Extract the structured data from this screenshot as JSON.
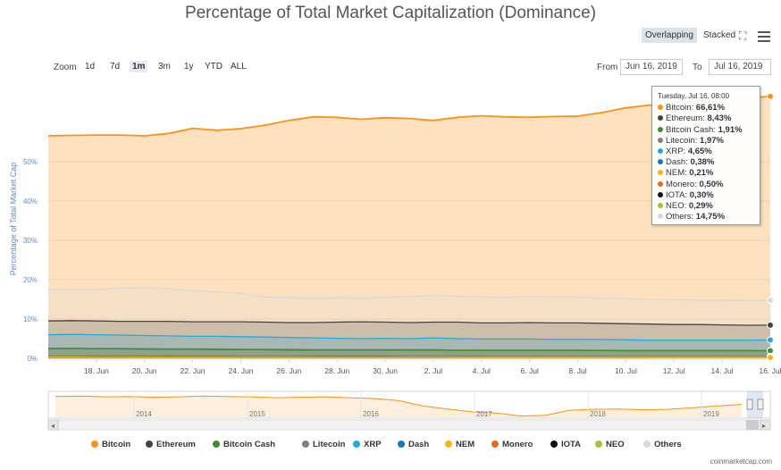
{
  "title": "Percentage of Total Market Capitalization (Dominance)",
  "view_buttons": {
    "overlapping": "Overlapping",
    "stacked": "Stacked"
  },
  "icons": {
    "fullscreen": "fullscreen-icon",
    "menu": "menu-icon"
  },
  "zoom": {
    "label": "Zoom",
    "options": [
      "1d",
      "7d",
      "1m",
      "3m",
      "1y",
      "YTD",
      "ALL"
    ],
    "active": "1m"
  },
  "range": {
    "from_label": "From",
    "from_value": "Jun 16, 2019",
    "to_label": "To",
    "to_value": "Jul 16, 2019"
  },
  "tooltip": {
    "header": "Tuesday, Jul 16, 08:00",
    "rows": [
      {
        "name": "Bitcoin",
        "value": "66,61%",
        "color": "#f7931a"
      },
      {
        "name": "Ethereum",
        "value": "8,43%",
        "color": "#434348"
      },
      {
        "name": "Bitcoin Cash",
        "value": "1,91%",
        "color": "#3c8d2f"
      },
      {
        "name": "Litecoin",
        "value": "1,97%",
        "color": "#7f7f7f"
      },
      {
        "name": "XRP",
        "value": "4,65%",
        "color": "#29a8d8"
      },
      {
        "name": "Dash",
        "value": "0,38%",
        "color": "#1c75bc"
      },
      {
        "name": "NEM",
        "value": "0,21%",
        "color": "#f8b41b"
      },
      {
        "name": "Monero",
        "value": "0,50%",
        "color": "#e46d1c"
      },
      {
        "name": "IOTA",
        "value": "0,30%",
        "color": "#111111"
      },
      {
        "name": "NEO",
        "value": "0,29%",
        "color": "#9ec43a"
      },
      {
        "name": "Others",
        "value": "14,75%",
        "color": "#d9d9d9"
      }
    ]
  },
  "navigator": {
    "year_labels": [
      "2014",
      "2015",
      "2016",
      "2017",
      "2018",
      "2019"
    ]
  },
  "credit": "coinmarketcap.com",
  "chart_data": {
    "type": "area",
    "ylabel": "Percentage of Total Market Cap",
    "xlabel": "",
    "ylim": [
      0,
      70
    ],
    "y_ticks": [
      "0%",
      "10%",
      "20%",
      "30%",
      "40%",
      "50%"
    ],
    "x_ticks": [
      "18. Jun",
      "20. Jun",
      "22. Jun",
      "24. Jun",
      "26. Jun",
      "28. Jun",
      "30. Jun",
      "2. Jul",
      "4. Jul",
      "6. Jul",
      "8. Jul",
      "10. Jul",
      "12. Jul",
      "14. Jul",
      "16. Jul"
    ],
    "x": [
      "Jun 16",
      "Jun 17",
      "Jun 18",
      "Jun 19",
      "Jun 20",
      "Jun 21",
      "Jun 22",
      "Jun 23",
      "Jun 24",
      "Jun 25",
      "Jun 26",
      "Jun 27",
      "Jun 28",
      "Jun 29",
      "Jun 30",
      "Jul 1",
      "Jul 2",
      "Jul 3",
      "Jul 4",
      "Jul 5",
      "Jul 6",
      "Jul 7",
      "Jul 8",
      "Jul 9",
      "Jul 10",
      "Jul 11",
      "Jul 12",
      "Jul 13",
      "Jul 14",
      "Jul 15",
      "Jul 16"
    ],
    "grid": true,
    "legend_position": "bottom",
    "series": [
      {
        "name": "Bitcoin",
        "color": "#f7931a",
        "values": [
          56.6,
          56.7,
          56.8,
          56.8,
          56.6,
          57.2,
          58.5,
          58.0,
          58.4,
          59.3,
          60.5,
          61.4,
          61.3,
          60.8,
          61.2,
          61.0,
          60.5,
          61.3,
          61.7,
          61.4,
          61.3,
          61.5,
          61.6,
          62.5,
          63.7,
          64.4,
          65.0,
          65.3,
          65.8,
          66.2,
          66.61
        ]
      },
      {
        "name": "Others",
        "color": "#d9d9d9",
        "values": [
          17.6,
          17.5,
          17.5,
          17.8,
          18.0,
          17.7,
          17.2,
          16.9,
          16.6,
          15.6,
          15.4,
          15.3,
          15.4,
          15.3,
          15.5,
          15.7,
          16.0,
          15.8,
          15.6,
          15.5,
          15.7,
          15.6,
          15.6,
          15.3,
          15.2,
          15.0,
          14.9,
          14.8,
          14.8,
          14.7,
          14.75
        ]
      },
      {
        "name": "Ethereum",
        "color": "#434348",
        "values": [
          9.5,
          9.6,
          9.5,
          9.4,
          9.4,
          9.4,
          9.3,
          9.3,
          9.3,
          9.2,
          9.1,
          9.1,
          9.2,
          9.3,
          9.2,
          9.1,
          9.2,
          9.2,
          9.0,
          9.0,
          9.1,
          9.0,
          9.0,
          8.9,
          8.8,
          8.7,
          8.6,
          8.6,
          8.5,
          8.4,
          8.43
        ]
      },
      {
        "name": "XRP",
        "color": "#29a8d8",
        "values": [
          6.0,
          6.1,
          6.0,
          5.9,
          5.8,
          5.7,
          5.6,
          5.6,
          5.5,
          5.4,
          5.3,
          5.2,
          5.1,
          5.0,
          5.1,
          5.0,
          5.2,
          5.0,
          4.9,
          4.9,
          4.9,
          4.8,
          4.8,
          4.8,
          4.7,
          4.6,
          4.6,
          4.6,
          4.6,
          4.6,
          4.65
        ]
      },
      {
        "name": "Litecoin",
        "color": "#7f7f7f",
        "values": [
          2.6,
          2.6,
          2.5,
          2.5,
          2.5,
          2.4,
          2.4,
          2.4,
          2.3,
          2.3,
          2.3,
          2.2,
          2.2,
          2.2,
          2.2,
          2.2,
          2.2,
          2.1,
          2.1,
          2.1,
          2.1,
          2.1,
          2.1,
          2.0,
          2.0,
          2.0,
          2.0,
          2.0,
          2.0,
          2.0,
          1.97
        ]
      },
      {
        "name": "Bitcoin Cash",
        "color": "#3c8d2f",
        "values": [
          2.4,
          2.5,
          2.4,
          2.4,
          2.3,
          2.3,
          2.3,
          2.2,
          2.2,
          2.2,
          2.1,
          2.1,
          2.1,
          2.1,
          2.1,
          2.1,
          2.1,
          2.0,
          2.0,
          2.0,
          2.0,
          2.0,
          2.0,
          2.0,
          1.9,
          1.9,
          1.9,
          1.9,
          1.9,
          1.9,
          1.91
        ]
      },
      {
        "name": "Monero",
        "color": "#e46d1c",
        "values": [
          0.6,
          0.6,
          0.6,
          0.6,
          0.6,
          0.6,
          0.6,
          0.6,
          0.55,
          0.55,
          0.55,
          0.55,
          0.55,
          0.55,
          0.55,
          0.55,
          0.55,
          0.52,
          0.52,
          0.52,
          0.52,
          0.52,
          0.52,
          0.5,
          0.5,
          0.5,
          0.5,
          0.5,
          0.5,
          0.5,
          0.5
        ]
      },
      {
        "name": "Dash",
        "color": "#1c75bc",
        "values": [
          0.45,
          0.45,
          0.45,
          0.44,
          0.44,
          0.43,
          0.43,
          0.42,
          0.42,
          0.41,
          0.41,
          0.41,
          0.4,
          0.4,
          0.4,
          0.4,
          0.4,
          0.4,
          0.39,
          0.39,
          0.39,
          0.39,
          0.39,
          0.38,
          0.38,
          0.38,
          0.38,
          0.38,
          0.38,
          0.38,
          0.38
        ]
      },
      {
        "name": "IOTA",
        "color": "#111111",
        "values": [
          0.4,
          0.4,
          0.4,
          0.4,
          0.39,
          0.38,
          0.37,
          0.36,
          0.35,
          0.34,
          0.34,
          0.33,
          0.33,
          0.33,
          0.33,
          0.32,
          0.32,
          0.32,
          0.32,
          0.31,
          0.31,
          0.31,
          0.31,
          0.31,
          0.3,
          0.3,
          0.3,
          0.3,
          0.3,
          0.3,
          0.3
        ]
      },
      {
        "name": "NEO",
        "color": "#9ec43a",
        "values": [
          0.38,
          0.38,
          0.37,
          0.36,
          0.36,
          0.35,
          0.35,
          0.34,
          0.34,
          0.33,
          0.33,
          0.32,
          0.32,
          0.32,
          0.31,
          0.31,
          0.31,
          0.31,
          0.3,
          0.3,
          0.3,
          0.3,
          0.3,
          0.3,
          0.29,
          0.29,
          0.29,
          0.29,
          0.29,
          0.29,
          0.29
        ]
      },
      {
        "name": "NEM",
        "color": "#f8b41b",
        "values": [
          0.3,
          0.3,
          0.29,
          0.29,
          0.28,
          0.28,
          0.27,
          0.27,
          0.26,
          0.26,
          0.25,
          0.25,
          0.25,
          0.24,
          0.24,
          0.24,
          0.24,
          0.23,
          0.23,
          0.23,
          0.23,
          0.22,
          0.22,
          0.22,
          0.22,
          0.21,
          0.21,
          0.21,
          0.21,
          0.21,
          0.21
        ]
      }
    ]
  }
}
